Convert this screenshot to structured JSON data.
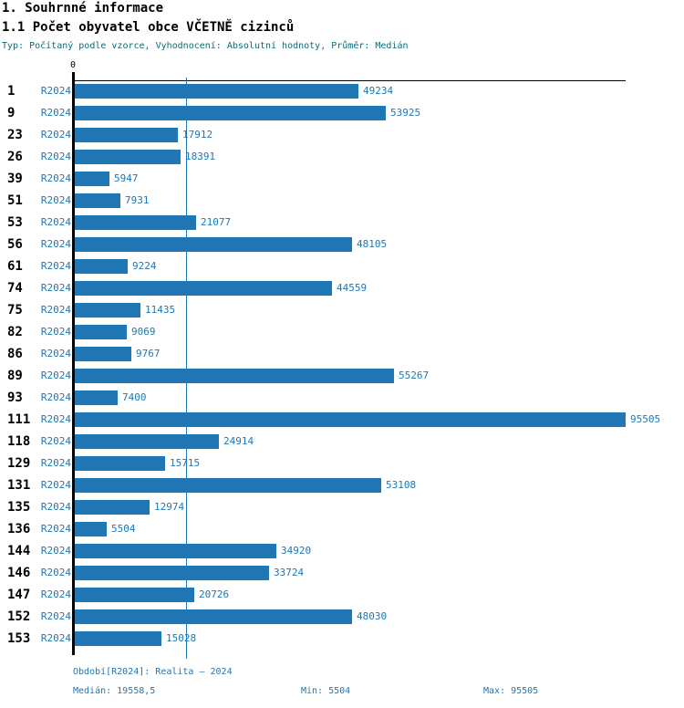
{
  "header": {
    "title1": "1. Souhrnné informace",
    "title2": "1.1 Počet obyvatel obce VČETNĚ cizinců",
    "subtitle": "Typ: Počítaný podle vzorce, Vyhodnocení: Absolutní hodnoty, Průměr: Medián"
  },
  "colors": {
    "bar": "#1f77b4",
    "blue_text": "#1f77b4",
    "subtitle_teal": "#0a6d74",
    "axis": "#000000",
    "background": "#ffffff"
  },
  "chart_data": {
    "type": "bar",
    "orientation": "horizontal",
    "title": "1.1 Počet obyvatel obce VČETNĚ cizinců",
    "categories": [
      "1",
      "9",
      "23",
      "26",
      "39",
      "51",
      "53",
      "56",
      "61",
      "74",
      "75",
      "82",
      "86",
      "89",
      "93",
      "111",
      "118",
      "129",
      "131",
      "135",
      "136",
      "144",
      "146",
      "147",
      "152",
      "153"
    ],
    "series": [
      {
        "name": "R2024",
        "values": [
          49234,
          53925,
          17912,
          18391,
          5947,
          7931,
          21077,
          48105,
          9224,
          44559,
          11435,
          9069,
          9767,
          55267,
          7400,
          95505,
          24914,
          15715,
          53108,
          12974,
          5504,
          34920,
          33724,
          20726,
          48030,
          15028
        ]
      }
    ],
    "xlim": [
      0,
      95505
    ],
    "x_tick_labels": [
      "0"
    ],
    "median_line_value": 19558.5,
    "value_labels_shown": true,
    "grid": false,
    "legend": "none",
    "stats": {
      "median": 19558.5,
      "min": 5504,
      "max": 95505
    }
  },
  "footer": {
    "period": "Období[R2024]: Realita – 2024",
    "median": "Medián: 19558,5",
    "min": "Min: 5504",
    "max": "Max: 95505"
  }
}
